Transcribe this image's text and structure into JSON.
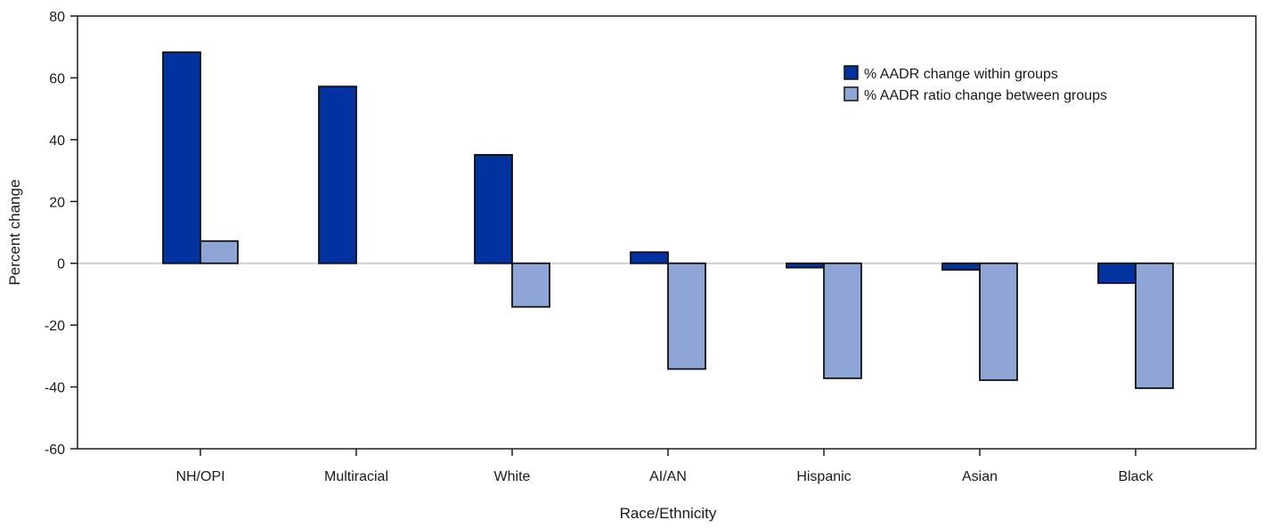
{
  "chart_data": {
    "type": "bar",
    "title": "",
    "xlabel": "Race/Ethnicity",
    "ylabel": "Percent change",
    "ylim": [
      -60,
      80
    ],
    "yticks": [
      80,
      60,
      40,
      20,
      0,
      -20,
      -40,
      -60
    ],
    "grid": false,
    "zero_line": true,
    "legend_position": "top-right",
    "categories": [
      "NH/OPI",
      "Multiracial",
      "White",
      "AI/AN",
      "Hispanic",
      "Asian",
      "Black"
    ],
    "series": [
      {
        "name": "% AADR change within groups",
        "color": "#0033a0",
        "values": [
          68.3,
          57.2,
          35.1,
          3.6,
          -1.4,
          -2.1,
          -6.4
        ]
      },
      {
        "name": "% AADR ratio change between groups",
        "color": "#8ea5d6",
        "values": [
          7.2,
          null,
          -14.1,
          -34.2,
          -37.2,
          -37.8,
          -40.4
        ]
      }
    ]
  }
}
